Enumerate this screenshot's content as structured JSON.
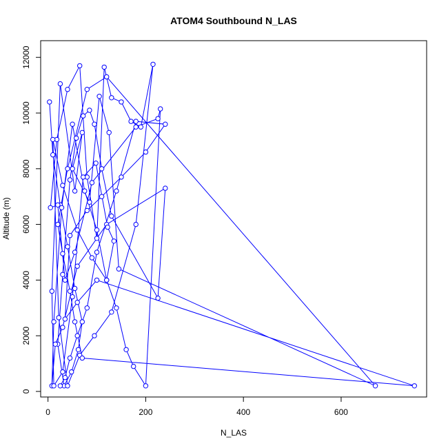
{
  "chart_data": {
    "type": "line",
    "title": "ATOM4 Southbound N_LAS",
    "xlabel": "N_LAS",
    "ylabel": "Altitude (m)",
    "xlim": [
      -15,
      775
    ],
    "ylim": [
      -200,
      12600
    ],
    "xticks": [
      0,
      200,
      400,
      600
    ],
    "yticks": [
      0,
      2000,
      4000,
      6000,
      8000,
      10000,
      12000
    ],
    "grid": false,
    "legend": "none",
    "marker": "open-circle",
    "color": "#0000ff",
    "series": [
      {
        "x": [
          3,
          10,
          25,
          40,
          55,
          70,
          62,
          48,
          33,
          20,
          30,
          45,
          58,
          72,
          85,
          95,
          110,
          130,
          225,
          240,
          120,
          60,
          30,
          15,
          8,
          12,
          28,
          50,
          75,
          100,
          120,
          140,
          160,
          175,
          200,
          230,
          225,
          180,
          90,
          55,
          35,
          20,
          5,
          18,
          40,
          65,
          80,
          100,
          115,
          130,
          150,
          170,
          190,
          215,
          180,
          130,
          95,
          65,
          40,
          22,
          10,
          30,
          60,
          90,
          120,
          135,
          122,
          98,
          72,
          50,
          30,
          12,
          8,
          25,
          55,
          70,
          50,
          85,
          105,
          125,
          145,
          670,
          120,
          80,
          40,
          20,
          30,
          45,
          55,
          70,
          750,
          100,
          60,
          35,
          45,
          80,
          110,
          150,
          200,
          240,
          180,
          140,
          100,
          80,
          60,
          45,
          35,
          25
        ],
        "y": [
          10400,
          8500,
          6700,
          5200,
          3700,
          2500,
          1500,
          700,
          200,
          1700,
          4200,
          7600,
          9100,
          9900,
          10100,
          9600,
          8000,
          6300,
          3350,
          7300,
          6000,
          4500,
          2300,
          1700,
          200,
          2500,
          6600,
          9600,
          7200,
          5800,
          4000,
          3000,
          1500,
          900,
          200,
          10150,
          9800,
          9500,
          7500,
          5000,
          4000,
          6700,
          6600,
          9050,
          10850,
          11700,
          7700,
          5500,
          11650,
          10550,
          10400,
          9700,
          9500,
          11750,
          6000,
          2850,
          2000,
          1300,
          200,
          2650,
          9050,
          7400,
          5800,
          4800,
          4000,
          5400,
          5900,
          8200,
          7700,
          3400,
          700,
          200,
          3600,
          11050,
          7200,
          9300,
          8000,
          6800,
          10600,
          9300,
          4400,
          200,
          11300,
          10850,
          8000,
          6000,
          4950,
          3600,
          2500,
          1200,
          200,
          4000,
          3200,
          2600,
          5600,
          6500,
          7000,
          7700,
          8600,
          9600,
          9700,
          7200,
          5000,
          3000,
          2000,
          1200,
          500,
          200
        ]
      }
    ]
  }
}
